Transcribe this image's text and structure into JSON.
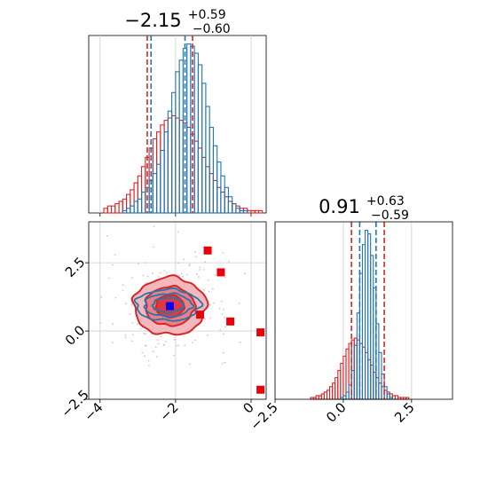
{
  "colors": {
    "blue": "#1f77b4",
    "red": "#d62728",
    "red_marker": "#e8000b",
    "blue_marker": "#0000ff",
    "grid": "#cfcfcf",
    "scatter_pink": "#f2b8c6",
    "scatter_gray": "#c8c8c8"
  },
  "chart_data": [
    {
      "type": "histogram",
      "panel": "top-left",
      "parameter_index": 0,
      "title": {
        "median": "−2.15",
        "plus": "+0.59",
        "minus": "−0.60"
      },
      "xlim": [
        -4.3,
        0.4
      ],
      "bin_edges_start": -3.9,
      "bin_width": 0.1,
      "series": [
        {
          "name": "",
          "color": "blue",
          "quantiles": [
            -2.65,
            -1.75
          ],
          "counts": [
            0,
            0,
            0,
            0,
            0,
            1,
            2,
            3,
            5,
            6,
            9,
            11,
            14,
            17,
            21,
            27,
            35,
            44,
            52,
            61,
            66,
            71,
            73,
            72,
            69,
            64,
            56,
            46,
            37,
            29,
            22,
            16,
            11,
            7,
            4,
            2,
            1,
            1,
            0,
            0,
            0,
            0,
            0,
            0
          ]
        },
        {
          "name": "",
          "color": "red",
          "quantiles": [
            -2.75,
            -1.55
          ],
          "counts": [
            2,
            3,
            3,
            4,
            5,
            6,
            8,
            10,
            13,
            16,
            20,
            24,
            28,
            32,
            35,
            38,
            40,
            41,
            42,
            41,
            40,
            39,
            37,
            34,
            31,
            28,
            24,
            20,
            17,
            14,
            11,
            9,
            7,
            5,
            4,
            3,
            2,
            2,
            1,
            1,
            1,
            1,
            0,
            0
          ]
        }
      ]
    },
    {
      "type": "histogram",
      "panel": "bottom-right",
      "parameter_index": 1,
      "title": {
        "median": "0.91",
        "plus": "+0.63",
        "minus": "−0.59"
      },
      "xlim": [
        -2.5,
        4.0
      ],
      "xticks": [
        "−2.5",
        "0.0",
        "2.5"
      ],
      "xtick_values": [
        -2.5,
        0.0,
        2.5
      ],
      "bin_edges_start": -1.5,
      "bin_width": 0.1,
      "series": [
        {
          "name": "",
          "color": "blue",
          "quantiles": [
            0.6,
            1.2
          ],
          "counts": [
            0,
            0,
            0,
            0,
            0,
            0,
            0,
            0,
            0,
            0,
            0,
            0,
            0,
            0,
            1,
            2,
            4,
            8,
            16,
            30,
            48,
            70,
            86,
            94,
            92,
            80,
            62,
            42,
            26,
            14,
            7,
            3,
            1,
            0,
            0,
            0,
            0,
            0,
            0,
            0,
            0,
            0,
            0,
            0,
            0,
            0,
            0,
            0,
            0,
            0
          ]
        },
        {
          "name": "",
          "color": "red",
          "quantiles": [
            0.3,
            1.5
          ],
          "counts": [
            0,
            0,
            0,
            1,
            1,
            2,
            2,
            3,
            4,
            5,
            7,
            9,
            12,
            16,
            20,
            24,
            28,
            31,
            33,
            34,
            33,
            31,
            29,
            26,
            22,
            19,
            15,
            12,
            9,
            7,
            5,
            4,
            3,
            2,
            2,
            1,
            1,
            1,
            1,
            0,
            0,
            0,
            0,
            0,
            0,
            0,
            0,
            0,
            0,
            0
          ]
        }
      ]
    },
    {
      "type": "scatter-contour",
      "panel": "bottom-left",
      "xlim": [
        -4.3,
        0.4
      ],
      "ylim": [
        -2.5,
        4.0
      ],
      "xticks": [
        "−4",
        "−2",
        "0"
      ],
      "xtick_values": [
        -4,
        -2,
        0
      ],
      "yticks": [
        "−2.5",
        "0.0",
        "2.5"
      ],
      "ytick_values": [
        -2.5,
        0.0,
        2.5
      ],
      "red_contour_center": [
        -2.15,
        0.91
      ],
      "red_contour_sigmas": [
        0.62,
        0.68
      ],
      "blue_contour_center": [
        -2.2,
        0.95
      ],
      "blue_contour_sigmas": [
        0.45,
        0.3
      ],
      "red_markers": [
        [
          -1.15,
          2.95
        ],
        [
          -0.8,
          2.15
        ],
        [
          -1.35,
          0.6
        ],
        [
          -0.55,
          0.35
        ],
        [
          0.25,
          -0.05
        ],
        [
          0.25,
          -2.15
        ]
      ],
      "blue_marker": [
        -2.15,
        0.91
      ]
    }
  ]
}
